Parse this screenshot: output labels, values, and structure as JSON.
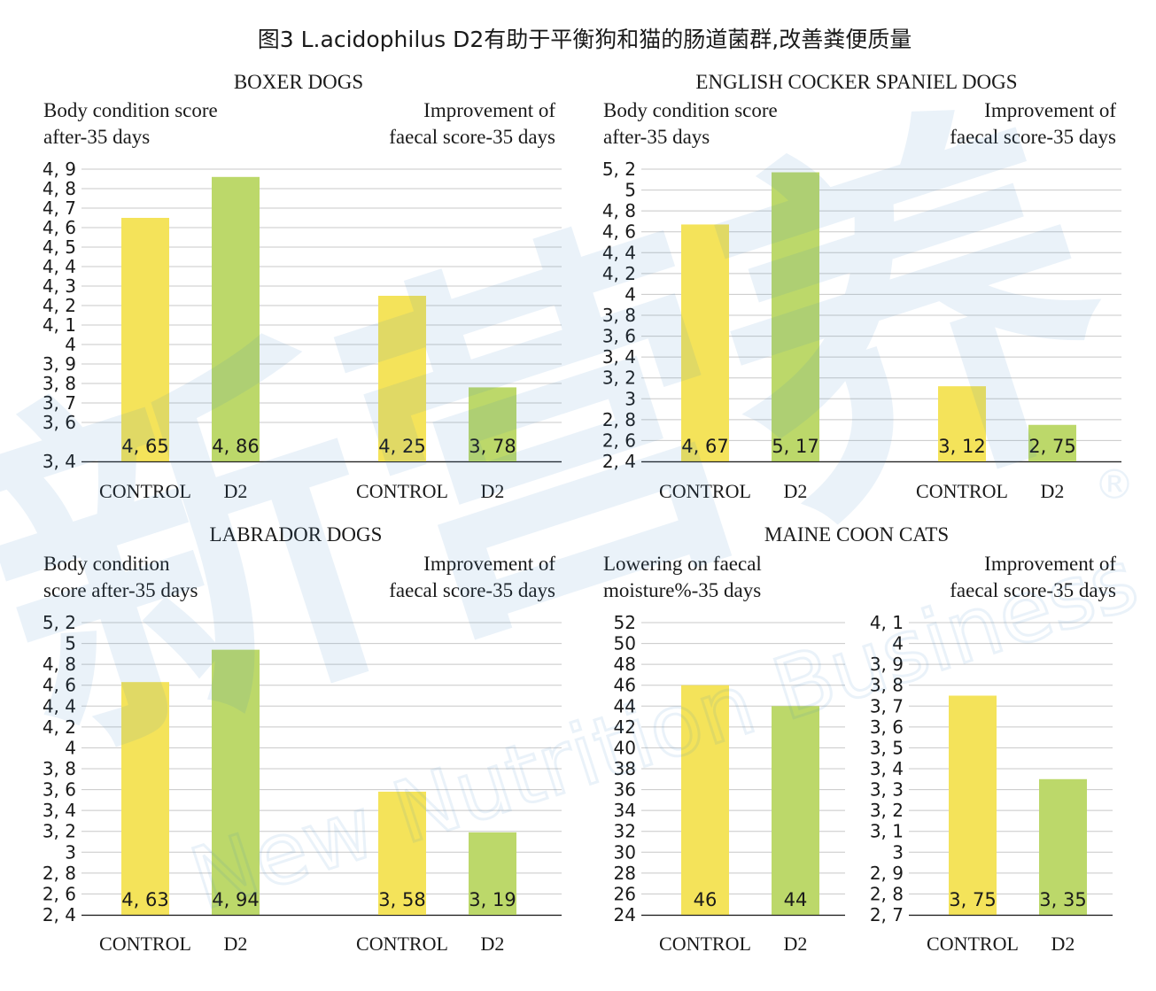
{
  "figure_title": "图3 L.acidophilus D2有助于平衡狗和猫的肠道菌群,改善粪便质量",
  "colors": {
    "control": "#f4e35a",
    "d2": "#bcd86a",
    "grid": "#c8c8c8",
    "axis": "#222222",
    "text": "#1a1a1a"
  },
  "panels": [
    {
      "title": "BOXER DOGS"
    },
    {
      "title": "ENGLISH COCKER SPANIEL DOGS"
    },
    {
      "title": "LABRADOR DOGS"
    },
    {
      "title": "MAINE COON CATS"
    }
  ],
  "chart_data": [
    {
      "type": "bar",
      "panel": "BOXER DOGS",
      "title_lines": [
        "Body condition score",
        "after-35 days"
      ],
      "categories": [
        "CONTROL",
        "D2"
      ],
      "values": [
        4.65,
        4.86
      ],
      "labels": [
        "4, 65",
        "4, 86"
      ],
      "ylim": [
        3.4,
        4.9
      ],
      "yticks": [
        3.4,
        3.6,
        3.7,
        3.8,
        3.9,
        4.0,
        4.1,
        4.2,
        4.3,
        4.4,
        4.5,
        4.6,
        4.7,
        4.8,
        4.9
      ],
      "yticklabels": [
        "3, 4",
        "3, 6",
        "3, 7",
        "3, 8",
        "3, 9",
        "4",
        "4, 1",
        "4, 2",
        "4, 3",
        "4, 4",
        "4, 5",
        "4, 6",
        "4, 7",
        "4, 8",
        "4, 9"
      ],
      "grid": true
    },
    {
      "type": "bar",
      "panel": "BOXER DOGS",
      "title_lines": [
        "Improvement of",
        "faecal score-35 days"
      ],
      "categories": [
        "CONTROL",
        "D2"
      ],
      "values": [
        4.25,
        3.78
      ],
      "labels": [
        "4, 25",
        "3, 78"
      ],
      "ylim": [
        3.4,
        4.9
      ],
      "grid": true
    },
    {
      "type": "bar",
      "panel": "ENGLISH COCKER SPANIEL DOGS",
      "title_lines": [
        "Body condition score",
        "after-35 days"
      ],
      "categories": [
        "CONTROL",
        "D2"
      ],
      "values": [
        4.67,
        5.17
      ],
      "labels": [
        "4, 67",
        "5, 17"
      ],
      "ylim": [
        2.4,
        5.2
      ],
      "yticks": [
        2.4,
        2.6,
        2.8,
        3.0,
        3.2,
        3.4,
        3.6,
        3.8,
        4.0,
        4.2,
        4.4,
        4.6,
        4.8,
        5.0,
        5.2
      ],
      "yticklabels": [
        "2, 4",
        "2, 6",
        "2, 8",
        "3",
        "3, 2",
        "3, 4",
        "3, 6",
        "3, 8",
        "4",
        "4, 2",
        "4, 4",
        "4, 6",
        "4, 8",
        "5",
        "5, 2"
      ],
      "grid": true
    },
    {
      "type": "bar",
      "panel": "ENGLISH COCKER SPANIEL DOGS",
      "title_lines": [
        "Improvement of",
        "faecal score-35 days"
      ],
      "categories": [
        "CONTROL",
        "D2"
      ],
      "values": [
        3.12,
        2.75
      ],
      "labels": [
        "3, 12",
        "2, 75"
      ],
      "ylim": [
        2.4,
        5.2
      ],
      "grid": true
    },
    {
      "type": "bar",
      "panel": "LABRADOR DOGS",
      "title_lines": [
        "Body condition",
        "score after-35 days"
      ],
      "categories": [
        "CONTROL",
        "D2"
      ],
      "values": [
        4.63,
        4.94
      ],
      "labels": [
        "4, 63",
        "4, 94"
      ],
      "ylim": [
        2.4,
        5.2
      ],
      "yticks": [
        2.4,
        2.6,
        2.8,
        3.0,
        3.2,
        3.4,
        3.6,
        3.8,
        4.0,
        4.2,
        4.4,
        4.6,
        4.8,
        5.0,
        5.2
      ],
      "yticklabels": [
        "2, 4",
        "2, 6",
        "2, 8",
        "3",
        "3, 2",
        "3, 4",
        "3, 6",
        "3, 8",
        "4",
        "4, 2",
        "4, 4",
        "4, 6",
        "4, 8",
        "5",
        "5, 2"
      ],
      "grid": true
    },
    {
      "type": "bar",
      "panel": "LABRADOR DOGS",
      "title_lines": [
        "Improvement of",
        "faecal score-35 days"
      ],
      "categories": [
        "CONTROL",
        "D2"
      ],
      "values": [
        3.58,
        3.19
      ],
      "labels": [
        "3, 58",
        "3, 19"
      ],
      "ylim": [
        2.4,
        5.2
      ],
      "grid": true
    },
    {
      "type": "bar",
      "panel": "MAINE COON CATS",
      "title_lines": [
        "Lowering on faecal",
        "moisture%-35 days"
      ],
      "categories": [
        "CONTROL",
        "D2"
      ],
      "values": [
        46,
        44
      ],
      "labels": [
        "46",
        "44"
      ],
      "ylim": [
        24,
        52
      ],
      "yticks": [
        24,
        26,
        28,
        30,
        32,
        34,
        36,
        38,
        40,
        42,
        44,
        46,
        48,
        50,
        52
      ],
      "yticklabels": [
        "24",
        "26",
        "28",
        "30",
        "32",
        "34",
        "36",
        "38",
        "40",
        "42",
        "44",
        "46",
        "48",
        "50",
        "52"
      ],
      "grid": true
    },
    {
      "type": "bar",
      "panel": "MAINE COON CATS",
      "title_lines": [
        "Improvement of",
        "faecal score-35 days"
      ],
      "categories": [
        "CONTROL",
        "D2"
      ],
      "values": [
        3.75,
        3.35
      ],
      "labels": [
        "3, 75",
        "3, 35"
      ],
      "ylim": [
        2.7,
        4.1
      ],
      "yticks": [
        2.7,
        2.8,
        2.9,
        3.0,
        3.1,
        3.2,
        3.3,
        3.4,
        3.5,
        3.6,
        3.7,
        3.8,
        3.9,
        4.0,
        4.1
      ],
      "yticklabels": [
        "2, 7",
        "2, 8",
        "2, 9",
        "3",
        "3, 1",
        "3, 2",
        "3, 3",
        "3, 4",
        "3, 5",
        "3, 6",
        "3, 7",
        "3, 8",
        "3, 9",
        "4",
        "4, 1"
      ],
      "grid": true
    }
  ],
  "watermark": {
    "cn": "新营养",
    "en": "New Nutrition Business",
    "mark": "®"
  }
}
